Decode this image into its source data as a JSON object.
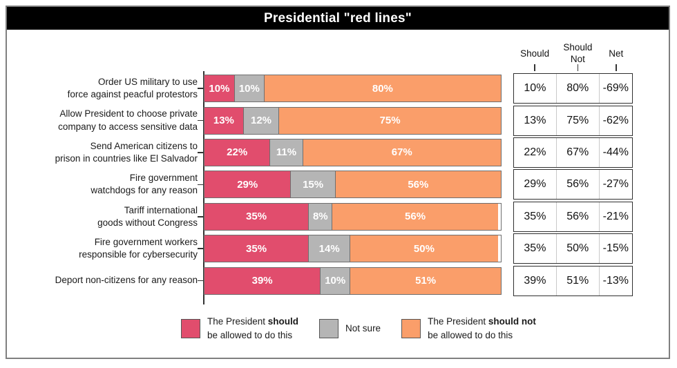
{
  "title": "Presidential \"red lines\"",
  "chart_data": {
    "type": "bar",
    "orientation": "horizontal",
    "stacked": true,
    "xlim": [
      0,
      100
    ],
    "value_suffix": "%",
    "categories": [
      "Order US military to use force against peacful protestors",
      "Allow President to choose private company to access sensitive data",
      "Send American citizens to prison in countries like El Salvador",
      "Fire government watchdogs for any reason",
      "Tariff international goods without Congress",
      "Fire government workers responsible for cybersecurity",
      "Deport non-citizens for any reason"
    ],
    "categories_lines": [
      [
        "Order US military to use",
        "force against peacful protestors"
      ],
      [
        "Allow President to choose private",
        "company to access sensitive data"
      ],
      [
        "Send American citizens to",
        "prison in countries like El Salvador"
      ],
      [
        "Fire government",
        "watchdogs for any reason"
      ],
      [
        "Tariff international",
        "goods without Congress"
      ],
      [
        "Fire government workers",
        "responsible for cybersecurity"
      ],
      [
        "Deport non-citizens for any reason",
        ""
      ]
    ],
    "series": [
      {
        "name": "The President should be allowed to do this",
        "color": "#e14d6d",
        "values": [
          10,
          13,
          22,
          29,
          35,
          35,
          39
        ]
      },
      {
        "name": "Not sure",
        "color": "#b5b5b5",
        "values": [
          10,
          12,
          11,
          15,
          8,
          14,
          10
        ]
      },
      {
        "name": "The President should not be allowed to do this",
        "color": "#fa9e6a",
        "values": [
          80,
          75,
          67,
          56,
          56,
          50,
          51
        ]
      }
    ]
  },
  "table": {
    "headers": [
      "Should",
      "Should Not",
      "Net"
    ],
    "rows": [
      [
        "10%",
        "80%",
        "-69%"
      ],
      [
        "13%",
        "75%",
        "-62%"
      ],
      [
        "22%",
        "67%",
        "-44%"
      ],
      [
        "29%",
        "56%",
        "-27%"
      ],
      [
        "35%",
        "56%",
        "-21%"
      ],
      [
        "35%",
        "50%",
        "-15%"
      ],
      [
        "39%",
        "51%",
        "-13%"
      ]
    ]
  },
  "legend": {
    "items": [
      {
        "color": "#e14d6d",
        "prefix": "The President ",
        "bold": "should",
        "line2": "be allowed to do this"
      },
      {
        "color": "#b5b5b5",
        "prefix": "Not sure",
        "bold": "",
        "line2": ""
      },
      {
        "color": "#fa9e6a",
        "prefix": "The President ",
        "bold": "should not",
        "line2": "be allowed to do this"
      }
    ]
  },
  "colors": {
    "should": "#e14d6d",
    "not_sure": "#b5b5b5",
    "should_not": "#fa9e6a",
    "title_bg": "#000000",
    "title_text": "#ffffff",
    "card_border": "#7f7f7f"
  }
}
